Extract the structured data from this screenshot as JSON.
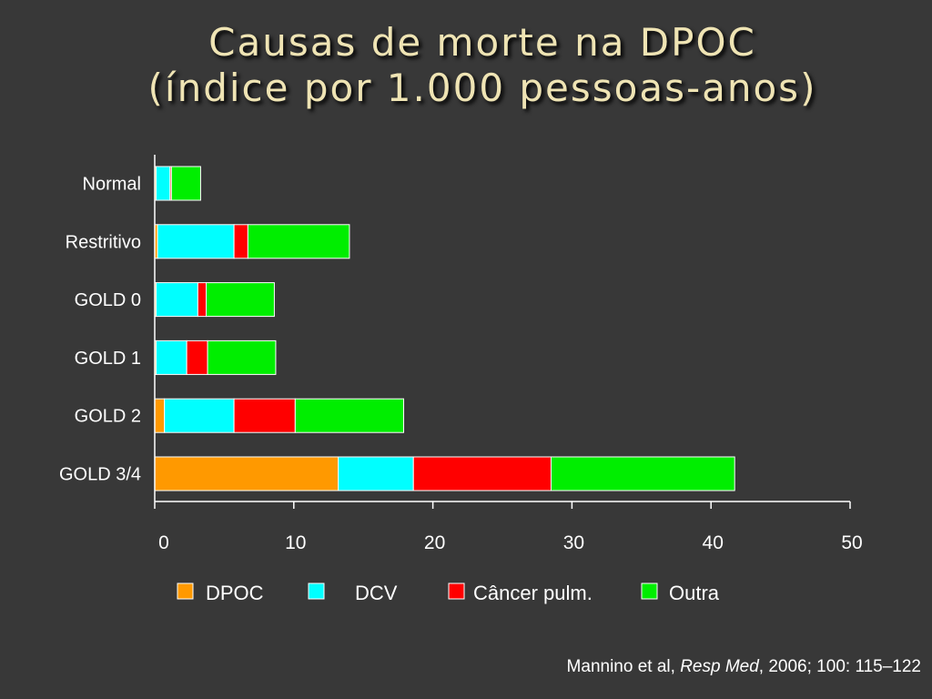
{
  "title": {
    "line1": "Causas de morte na DPOC",
    "line2": "(índice por 1.000 pessoas-anos)"
  },
  "citation": {
    "prefix": "Mannino et al, ",
    "journal": "Resp Med",
    "suffix": ", 2006; 100: 115–122"
  },
  "colors": {
    "background": "#383838",
    "title": "#efe4b4",
    "axis": "#ffffff",
    "text": "#ffffff"
  },
  "chart_data": {
    "type": "bar",
    "orientation": "horizontal",
    "stacked": true,
    "categories": [
      "Normal",
      "Restritivo",
      "GOLD 0",
      "GOLD 1",
      "GOLD 2",
      "GOLD 3/4"
    ],
    "series": [
      {
        "name": "DPOC",
        "color": "#ff9900",
        "values": [
          0.1,
          0.2,
          0.1,
          0.1,
          0.7,
          13.2
        ]
      },
      {
        "name": "DCV",
        "color": "#00ffff",
        "values": [
          1.0,
          5.5,
          3.0,
          2.2,
          5.0,
          5.4
        ]
      },
      {
        "name": "Câncer pulm.",
        "color": "#ff0000",
        "values": [
          0.1,
          1.0,
          0.6,
          1.5,
          4.4,
          9.9
        ]
      },
      {
        "name": "Outra",
        "color": "#00ee00",
        "values": [
          2.1,
          7.3,
          4.9,
          4.9,
          7.8,
          13.2
        ]
      }
    ],
    "xlim": [
      0,
      50
    ],
    "xticks": [
      "0",
      "10",
      "20",
      "30",
      "40",
      "50"
    ],
    "grid": false,
    "legend_position": "bottom"
  }
}
